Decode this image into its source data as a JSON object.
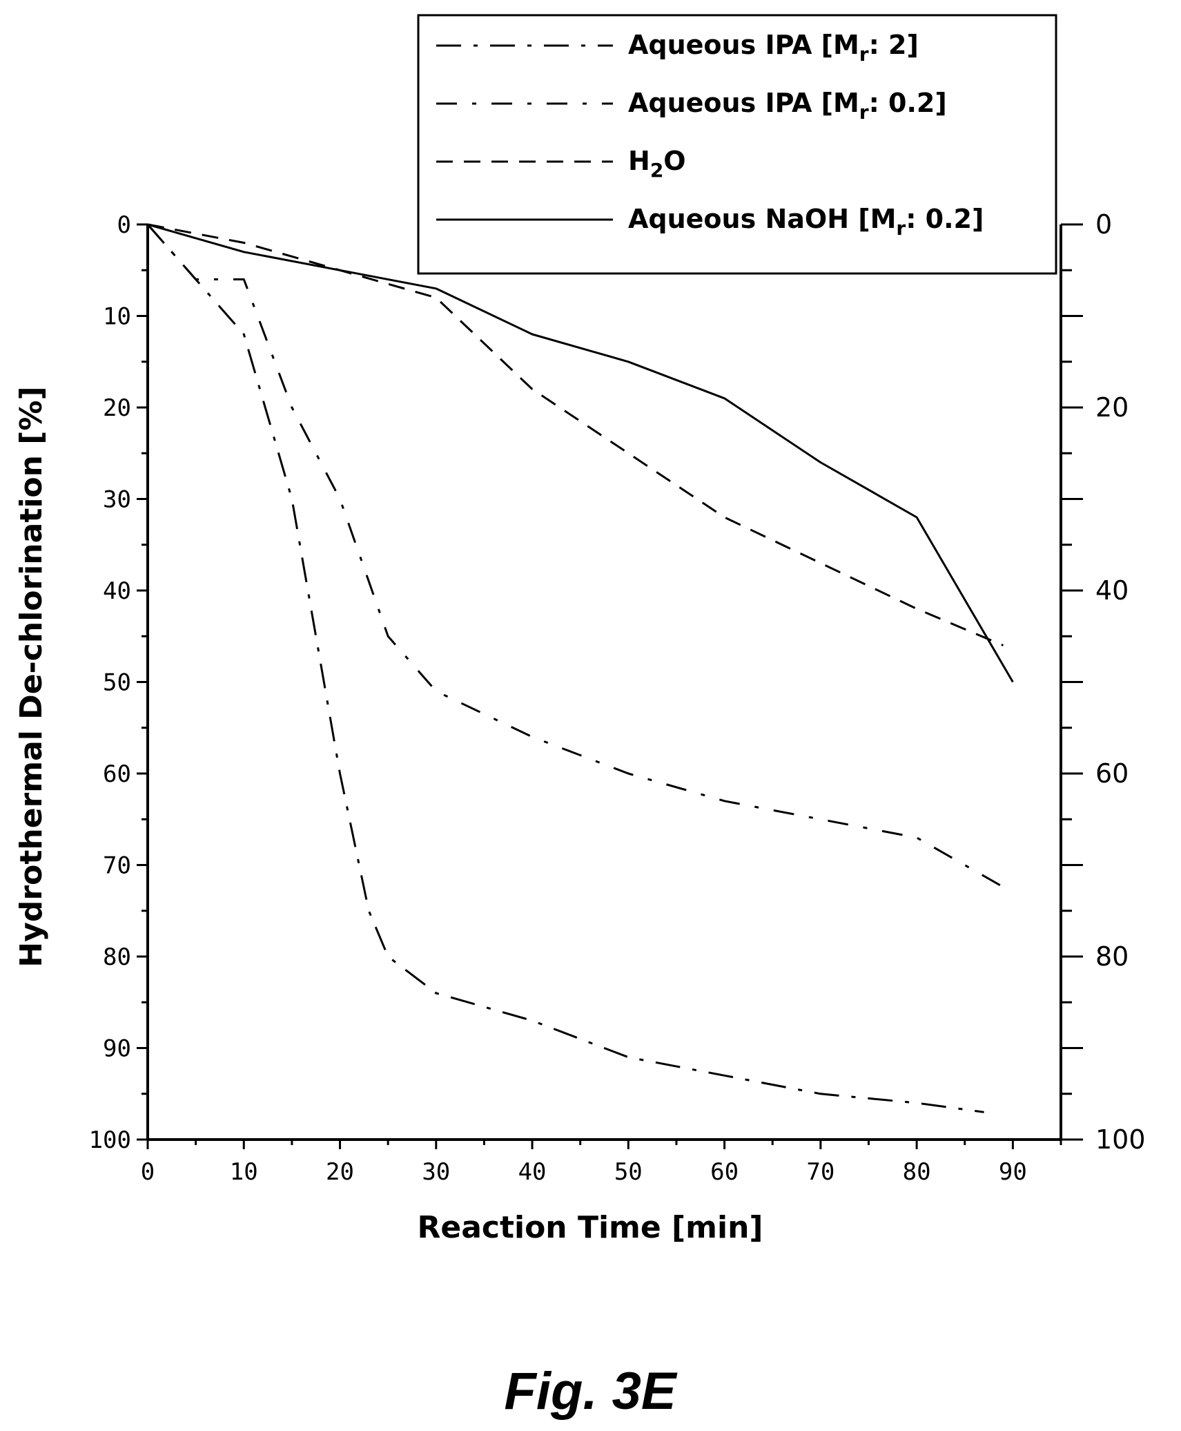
{
  "chart_data": {
    "type": "line",
    "xlabel": "Reaction Time [min]",
    "ylabel": "Hydrothermal De-chlorination [%]",
    "xlim": [
      0,
      95
    ],
    "ylim": [
      0,
      100
    ],
    "y_inverted": true,
    "x_ticks": [
      0,
      10,
      20,
      30,
      40,
      50,
      60,
      70,
      80,
      90
    ],
    "y_ticks_left": [
      0,
      10,
      20,
      30,
      40,
      50,
      60,
      70,
      80,
      90,
      100
    ],
    "y_ticks_right": [
      0,
      20,
      40,
      60,
      80,
      100
    ],
    "grid": false,
    "legend_position": "top-right",
    "series": [
      {
        "name": "Aqueous IPA [M",
        "name_sub": "r",
        "name_suffix": ": 2]",
        "style": "dash-dot-long",
        "x": [
          0,
          5,
          10,
          15,
          20,
          23,
          25,
          30,
          40,
          50,
          60,
          70,
          80,
          87
        ],
        "y": [
          0,
          6,
          12,
          30,
          60,
          75,
          80,
          84,
          87,
          91,
          93,
          95,
          96,
          97
        ]
      },
      {
        "name": "Aqueous IPA [M",
        "name_sub": "r",
        "name_suffix": ": 0.2]",
        "style": "dash-dot",
        "x": [
          0,
          5,
          10,
          15,
          20,
          25,
          30,
          40,
          50,
          60,
          70,
          80,
          90
        ],
        "y": [
          0,
          6,
          6,
          20,
          30,
          45,
          51,
          56,
          60,
          63,
          65,
          67,
          73
        ]
      },
      {
        "name": "H",
        "name_sub": "2",
        "name_suffix": "O",
        "style": "dashed",
        "x": [
          0,
          10,
          20,
          30,
          40,
          50,
          60,
          70,
          80,
          89
        ],
        "y": [
          0,
          2,
          5,
          8,
          18,
          25,
          32,
          37,
          42,
          46
        ]
      },
      {
        "name": "Aqueous NaOH [M",
        "name_sub": "r",
        "name_suffix": ": 0.2]",
        "style": "solid",
        "x": [
          0,
          10,
          20,
          30,
          40,
          50,
          60,
          70,
          80,
          90
        ],
        "y": [
          0,
          3,
          5,
          7,
          12,
          15,
          19,
          26,
          32,
          50
        ]
      }
    ]
  },
  "caption": "Fig. 3E"
}
